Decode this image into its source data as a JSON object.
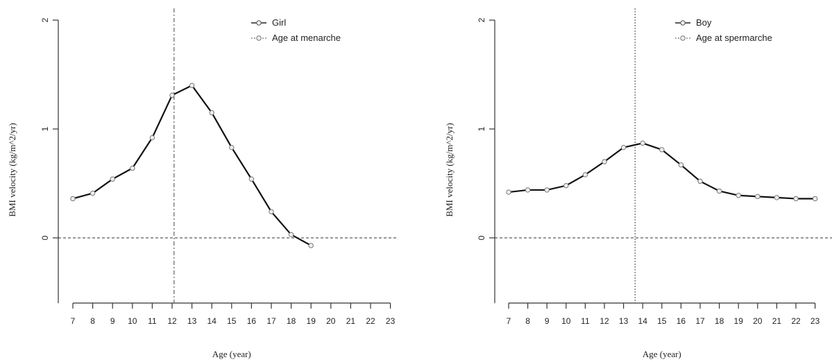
{
  "chart_data": [
    {
      "type": "line",
      "xlabel": "Age (year)",
      "ylabel": "BMI velocity (kg/m^2/yr)",
      "x_ticks": [
        7,
        8,
        9,
        10,
        11,
        12,
        13,
        14,
        15,
        16,
        17,
        18,
        19,
        20,
        21,
        22,
        23
      ],
      "y_ticks": [
        0,
        1,
        2
      ],
      "xlim": [
        7,
        23
      ],
      "ylim": [
        -0.6,
        2
      ],
      "legend_position": "top-right",
      "series": [
        {
          "name": "Girl",
          "x": [
            7,
            8,
            9,
            10,
            11,
            12,
            13,
            14,
            15,
            16,
            17,
            18,
            19
          ],
          "y": [
            0.36,
            0.41,
            0.54,
            0.64,
            0.92,
            1.31,
            1.4,
            1.15,
            0.83,
            0.54,
            0.24,
            0.03,
            -0.07
          ]
        }
      ],
      "markers": [
        {
          "name": "Age at menarche",
          "x": 12.1
        }
      ],
      "hline_y": 0
    },
    {
      "type": "line",
      "xlabel": "Age (year)",
      "ylabel": "BMI velocity (kg/m^2/yr)",
      "x_ticks": [
        7,
        8,
        9,
        10,
        11,
        12,
        13,
        14,
        15,
        16,
        17,
        18,
        19,
        20,
        21,
        22,
        23
      ],
      "y_ticks": [
        0,
        1,
        2
      ],
      "xlim": [
        7,
        23
      ],
      "ylim": [
        -0.6,
        2
      ],
      "legend_position": "top-right",
      "series": [
        {
          "name": "Boy",
          "x": [
            7,
            8,
            9,
            10,
            11,
            12,
            13,
            14,
            15,
            16,
            17,
            18,
            19,
            20,
            21,
            22,
            23
          ],
          "y": [
            0.42,
            0.44,
            0.44,
            0.48,
            0.58,
            0.7,
            0.83,
            0.87,
            0.81,
            0.67,
            0.52,
            0.43,
            0.39,
            0.38,
            0.37,
            0.36,
            0.36
          ]
        }
      ],
      "markers": [
        {
          "name": "Age at spermarche",
          "x": 13.6
        }
      ],
      "hline_y": 0
    }
  ]
}
